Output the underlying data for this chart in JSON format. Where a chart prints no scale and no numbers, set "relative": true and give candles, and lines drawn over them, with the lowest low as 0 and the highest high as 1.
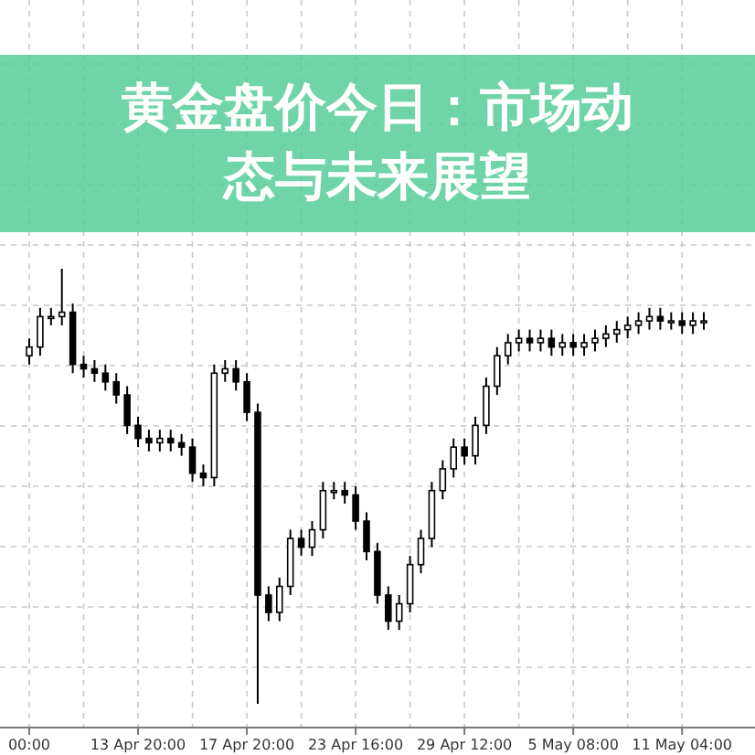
{
  "chart_data": {
    "type": "candlestick",
    "title": "黄金盘价今日：市场动态与未来展望",
    "relative": true,
    "grid": true,
    "color": "#000000",
    "categories": [
      "00:00",
      null,
      null,
      null,
      null,
      null,
      null,
      null,
      null,
      null,
      "13 Apr 20:00",
      null,
      null,
      null,
      null,
      null,
      null,
      null,
      null,
      null,
      "17 Apr 20:00",
      null,
      null,
      null,
      null,
      null,
      null,
      null,
      null,
      null,
      "23 Apr 16:00",
      null,
      null,
      null,
      null,
      null,
      null,
      null,
      null,
      null,
      "29 Apr 12:00",
      null,
      null,
      null,
      null,
      null,
      null,
      null,
      null,
      null,
      "5 May 08:00",
      null,
      null,
      null,
      null,
      null,
      null,
      null,
      null,
      null,
      "11 May 04:00",
      null,
      null
    ],
    "ohlc": [
      [
        0.8,
        0.84,
        0.78,
        0.82
      ],
      [
        0.82,
        0.91,
        0.8,
        0.89
      ],
      [
        0.89,
        0.91,
        0.87,
        0.89
      ],
      [
        0.89,
        1.0,
        0.87,
        0.9
      ],
      [
        0.9,
        0.92,
        0.76,
        0.78
      ],
      [
        0.78,
        0.8,
        0.75,
        0.77
      ],
      [
        0.77,
        0.79,
        0.74,
        0.76
      ],
      [
        0.76,
        0.78,
        0.72,
        0.74
      ],
      [
        0.74,
        0.76,
        0.69,
        0.71
      ],
      [
        0.71,
        0.73,
        0.62,
        0.64
      ],
      [
        0.64,
        0.66,
        0.59,
        0.61
      ],
      [
        0.61,
        0.63,
        0.58,
        0.6
      ],
      [
        0.6,
        0.63,
        0.58,
        0.61
      ],
      [
        0.61,
        0.63,
        0.58,
        0.6
      ],
      [
        0.6,
        0.62,
        0.57,
        0.59
      ],
      [
        0.59,
        0.61,
        0.51,
        0.53
      ],
      [
        0.53,
        0.55,
        0.5,
        0.52
      ],
      [
        0.52,
        0.78,
        0.5,
        0.76
      ],
      [
        0.76,
        0.79,
        0.74,
        0.77
      ],
      [
        0.77,
        0.79,
        0.72,
        0.74
      ],
      [
        0.74,
        0.76,
        0.65,
        0.67
      ],
      [
        0.67,
        0.69,
        0.0,
        0.25
      ],
      [
        0.25,
        0.27,
        0.19,
        0.21
      ],
      [
        0.21,
        0.29,
        0.19,
        0.27
      ],
      [
        0.27,
        0.4,
        0.25,
        0.38
      ],
      [
        0.38,
        0.4,
        0.34,
        0.36
      ],
      [
        0.36,
        0.42,
        0.34,
        0.4
      ],
      [
        0.4,
        0.51,
        0.38,
        0.49
      ],
      [
        0.49,
        0.51,
        0.47,
        0.49
      ],
      [
        0.49,
        0.51,
        0.46,
        0.48
      ],
      [
        0.48,
        0.5,
        0.4,
        0.42
      ],
      [
        0.42,
        0.44,
        0.33,
        0.35
      ],
      [
        0.35,
        0.37,
        0.23,
        0.25
      ],
      [
        0.25,
        0.27,
        0.17,
        0.19
      ],
      [
        0.19,
        0.25,
        0.17,
        0.23
      ],
      [
        0.23,
        0.34,
        0.21,
        0.32
      ],
      [
        0.32,
        0.4,
        0.3,
        0.38
      ],
      [
        0.38,
        0.51,
        0.36,
        0.49
      ],
      [
        0.49,
        0.56,
        0.47,
        0.54
      ],
      [
        0.54,
        0.61,
        0.52,
        0.59
      ],
      [
        0.59,
        0.61,
        0.55,
        0.57
      ],
      [
        0.57,
        0.66,
        0.55,
        0.64
      ],
      [
        0.64,
        0.75,
        0.62,
        0.73
      ],
      [
        0.73,
        0.82,
        0.71,
        0.8
      ],
      [
        0.8,
        0.85,
        0.78,
        0.83
      ],
      [
        0.83,
        0.86,
        0.81,
        0.84
      ],
      [
        0.84,
        0.86,
        0.81,
        0.83
      ],
      [
        0.83,
        0.86,
        0.81,
        0.84
      ],
      [
        0.84,
        0.86,
        0.8,
        0.82
      ],
      [
        0.82,
        0.85,
        0.8,
        0.83
      ],
      [
        0.83,
        0.85,
        0.8,
        0.82
      ],
      [
        0.82,
        0.85,
        0.8,
        0.83
      ],
      [
        0.83,
        0.86,
        0.81,
        0.84
      ],
      [
        0.84,
        0.87,
        0.82,
        0.85
      ],
      [
        0.85,
        0.88,
        0.83,
        0.86
      ],
      [
        0.86,
        0.89,
        0.84,
        0.87
      ],
      [
        0.87,
        0.9,
        0.85,
        0.88
      ],
      [
        0.88,
        0.91,
        0.86,
        0.89
      ],
      [
        0.89,
        0.91,
        0.86,
        0.88
      ],
      [
        0.88,
        0.9,
        0.86,
        0.88
      ],
      [
        0.88,
        0.9,
        0.85,
        0.87
      ],
      [
        0.87,
        0.9,
        0.85,
        0.88
      ],
      [
        0.88,
        0.9,
        0.86,
        0.88
      ]
    ]
  }
}
